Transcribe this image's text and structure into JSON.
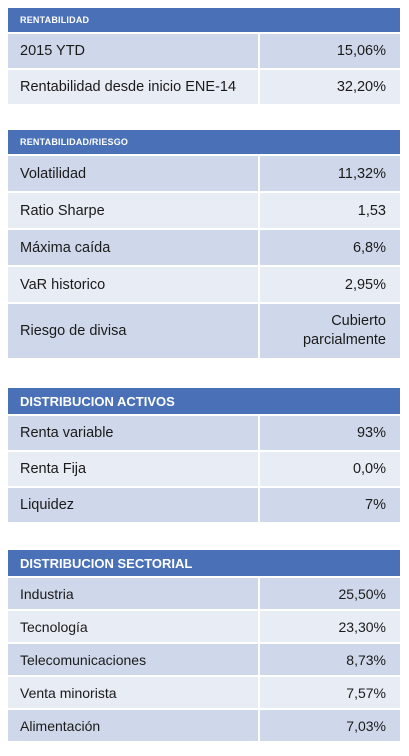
{
  "rentabilidad": {
    "title": "RENTABILIDAD",
    "rows": [
      {
        "label": "2015 YTD",
        "value": "15,06%"
      },
      {
        "label": "Rentabilidad desde inicio ENE-14",
        "value": "32,20%"
      }
    ]
  },
  "riesgo": {
    "title": "RENTABILIDAD/RIESGO",
    "rows": [
      {
        "label": "Volatilidad",
        "value": "11,32%"
      },
      {
        "label": "Ratio Sharpe",
        "value": "1,53"
      },
      {
        "label": "Máxima caída",
        "value": "6,8%"
      },
      {
        "label": "VaR historico",
        "value": "2,95%"
      },
      {
        "label": "Riesgo de divisa",
        "value_line1": "Cubierto",
        "value_line2": "parcialmente"
      }
    ]
  },
  "activos": {
    "title": "DISTRIBUCION ACTIVOS",
    "rows": [
      {
        "label": "Renta variable",
        "value": "93%"
      },
      {
        "label": "Renta Fija",
        "value": "0,0%"
      },
      {
        "label": "Liquidez",
        "value": "7%"
      }
    ]
  },
  "sectorial": {
    "title": "DISTRIBUCION SECTORIAL",
    "rows": [
      {
        "label": "Industria",
        "value": "25,50%"
      },
      {
        "label": "Tecnología",
        "value": "23,30%"
      },
      {
        "label": "Telecomunicaciones",
        "value": "8,73%"
      },
      {
        "label": "Venta minorista",
        "value": "7,57%"
      },
      {
        "label": "Alimentación",
        "value": "7,03%"
      }
    ]
  }
}
